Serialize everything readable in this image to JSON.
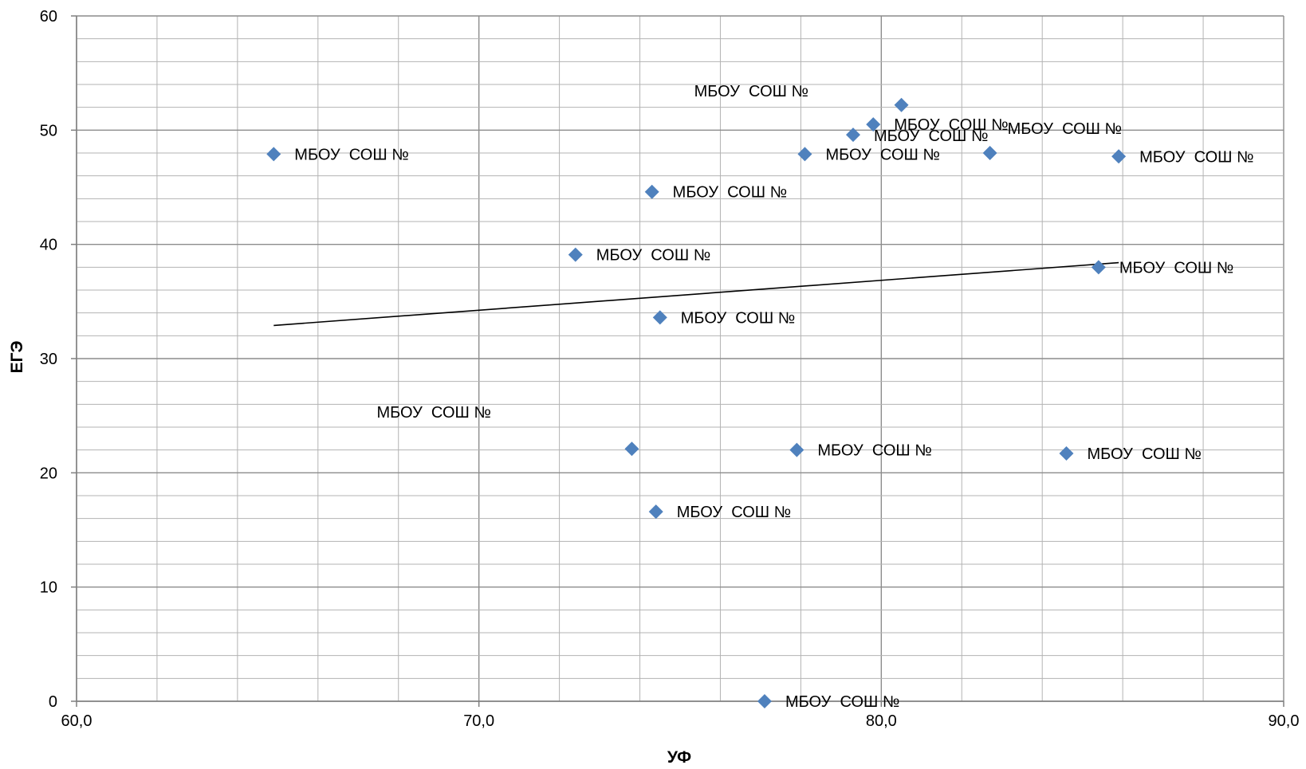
{
  "chart_data": {
    "type": "scatter",
    "title": "",
    "xlabel": "УФ",
    "ylabel": "ЕГЭ",
    "xlim": [
      60,
      90
    ],
    "ylim": [
      0,
      60
    ],
    "x_ticks": [
      {
        "value": 60,
        "label": "60,0"
      },
      {
        "value": 70,
        "label": "70,0"
      },
      {
        "value": 80,
        "label": "80,0"
      },
      {
        "value": 90,
        "label": "90,0"
      }
    ],
    "y_ticks": [
      {
        "value": 0,
        "label": "0"
      },
      {
        "value": 10,
        "label": "10"
      },
      {
        "value": 20,
        "label": "20"
      },
      {
        "value": 30,
        "label": "30"
      },
      {
        "value": 40,
        "label": "40"
      },
      {
        "value": 50,
        "label": "50"
      },
      {
        "value": 60,
        "label": "60"
      }
    ],
    "grid": {
      "major": true,
      "minor": true
    },
    "legend": "none",
    "marker_color": "#4F81BD",
    "trendline": {
      "type": "linear",
      "x": [
        64.9,
        85.9
      ],
      "y": [
        32.9,
        38.4
      ],
      "color": "#000000"
    },
    "points": [
      {
        "x": 64.9,
        "y": 47.9,
        "label": "МБОУ  СОШ №"
      },
      {
        "x": 72.4,
        "y": 39.1,
        "label": "МБОУ  СОШ №"
      },
      {
        "x": 73.8,
        "y": 22.1,
        "label": "МБОУ  СОШ №"
      },
      {
        "x": 74.3,
        "y": 44.6,
        "label": "МБОУ  СОШ №"
      },
      {
        "x": 74.5,
        "y": 33.6,
        "label": "МБОУ  СОШ №"
      },
      {
        "x": 74.4,
        "y": 16.6,
        "label": "МБОУ  СОШ №"
      },
      {
        "x": 77.1,
        "y": 0.0,
        "label": "МБОУ  СОШ №"
      },
      {
        "x": 78.1,
        "y": 47.9,
        "label": "МБОУ  СОШ №"
      },
      {
        "x": 77.9,
        "y": 22.0,
        "label": "МБОУ  СОШ №"
      },
      {
        "x": 79.3,
        "y": 49.6,
        "label": "МБОУ  СОШ №"
      },
      {
        "x": 79.8,
        "y": 50.5,
        "label": "МБОУ  СОШ №"
      },
      {
        "x": 80.5,
        "y": 52.2,
        "label": "МБОУ  СОШ №"
      },
      {
        "x": 82.7,
        "y": 48.0,
        "label": "МБОУ  СОШ №"
      },
      {
        "x": 84.6,
        "y": 21.7,
        "label": "МБОУ  СОШ №"
      },
      {
        "x": 85.4,
        "y": 38.0,
        "label": "МБОУ  СОШ №"
      },
      {
        "x": 85.9,
        "y": 47.7,
        "label": "МБОУ  СОШ №"
      }
    ]
  }
}
